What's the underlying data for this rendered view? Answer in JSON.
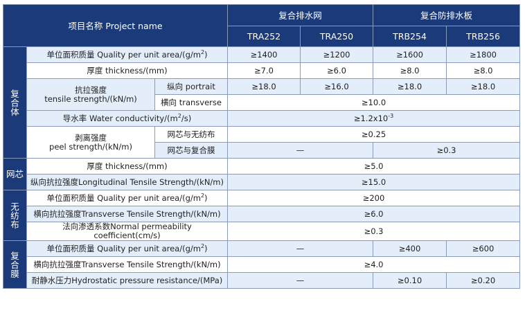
{
  "header": {
    "project_name": "项目名称 Project name",
    "group1": "复合排水网",
    "group2": "复合防排水板",
    "models": [
      "TRA252",
      "TRA250",
      "TRB254",
      "TRB256"
    ]
  },
  "sections": {
    "composite": "复合体",
    "net_core": "网芯",
    "nonwoven": "无纺布",
    "membrane": "复合膜"
  },
  "rows": {
    "mass": {
      "label": "单位面积质量  Quality per unit area/(g/m",
      "sup": "2",
      "tail": ")",
      "values": [
        "≥1400",
        "≥1200",
        "≥1600",
        "≥1800"
      ]
    },
    "thickness": {
      "label": "厚度  thickness/(mm)",
      "values": [
        "≥7.0",
        "≥6.0",
        "≥8.0",
        "≥8.0"
      ]
    },
    "tensile": {
      "label_cn": "抗拉强度",
      "label_en": "tensile strength/(kN/m)",
      "portrait_label": "纵向 portrait",
      "portrait_values": [
        "≥18.0",
        "≥16.0",
        "≥18.0",
        "≥18.0"
      ],
      "transverse_label": "横向 transverse",
      "transverse_value": "≥10.0"
    },
    "conductivity": {
      "label": "导水率 Water conductivity/(m",
      "sup": "2",
      "tail": "/s)",
      "value_base": "≥1.2x10",
      "value_sup": "-3"
    },
    "peel": {
      "label_cn": "剥离强度",
      "label_en": "peel strength/(kN/m)",
      "sub1_label": "网芯与无纺布",
      "sub1_value": "≥0.25",
      "sub2_label": "网芯与复合膜",
      "sub2_left": "—",
      "sub2_right": "≥0.3"
    },
    "core_thickness": {
      "label": "厚度  thickness/(mm)",
      "value": "≥5.0"
    },
    "core_tensile": {
      "label": "纵向抗拉强度Longitudinal Tensile Strength/(kN/m)",
      "value": "≥15.0"
    },
    "nw_mass": {
      "label": "单位面积质量  Quality per unit area/(g/m",
      "sup": "2",
      "tail": ")",
      "value": "≥200"
    },
    "nw_tensile": {
      "label": "横向抗拉强度Transverse Tensile Strength/(kN/m)",
      "value": "≥6.0"
    },
    "nw_perm": {
      "label": "法向渗透系数Normal permeability coefficient(cm/s)",
      "value": "≥0.3"
    },
    "mb_mass": {
      "label": "单位面积质量  Quality per unit area/(g/m",
      "sup": "2",
      "tail": ")",
      "left": "—",
      "values": [
        "≥400",
        "≥600"
      ]
    },
    "mb_tensile": {
      "label": "横向抗拉强度Transverse Tensile Strength/(kN/m)",
      "value": "≥4.0"
    },
    "mb_hydro": {
      "label": "耐静水压力Hydrostatic pressure resistance/(MPa)",
      "left": "—",
      "values": [
        "≥0.10",
        "≥0.20"
      ]
    }
  }
}
